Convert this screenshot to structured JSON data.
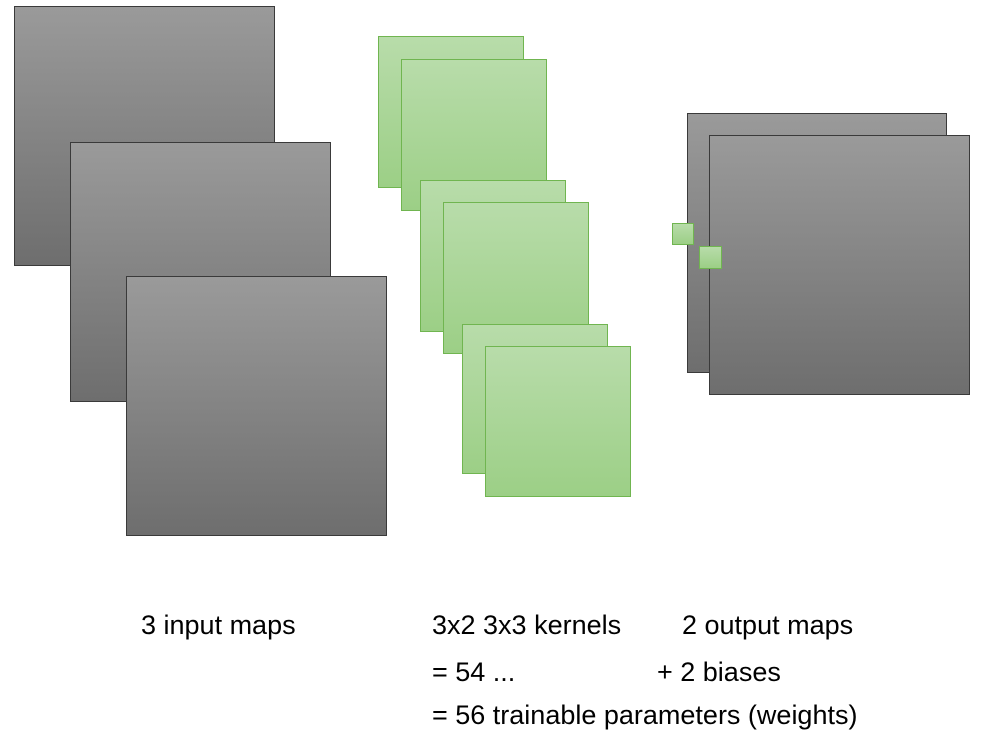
{
  "labels": {
    "input_maps": "3 input maps",
    "kernels": "3x2 3x3 kernels",
    "output_maps": "2 output maps",
    "weights_count": "= 54 ...",
    "biases": "+ 2 biases",
    "total": "= 56 trainable parameters (weights)"
  },
  "colors": {
    "map_top": "#9a9a9a",
    "map_bottom": "#6e6e6e",
    "kernel_fill": "#b8dcaa",
    "kernel_border": "#70b550"
  }
}
